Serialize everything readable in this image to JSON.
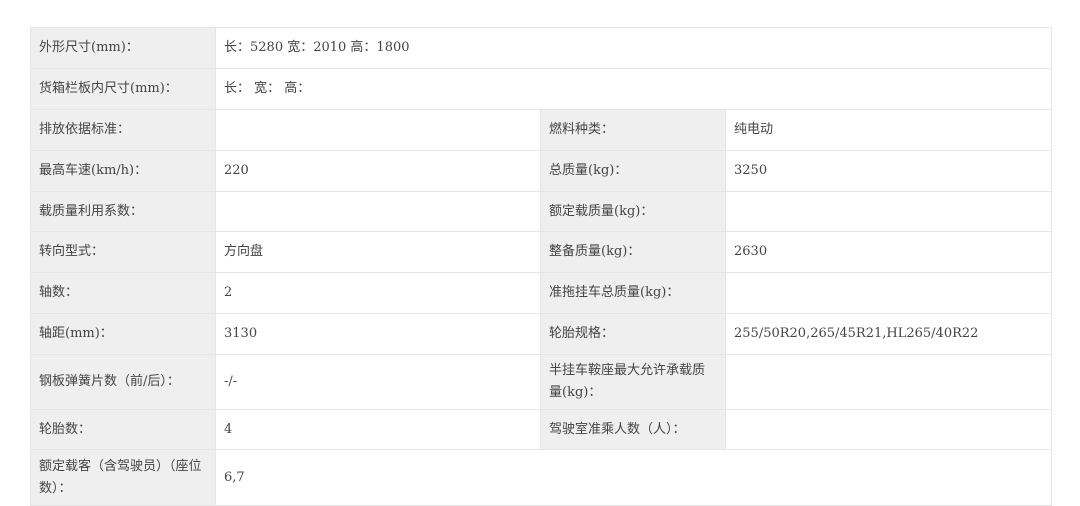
{
  "rows": [
    {
      "type": "wide",
      "label": "外形尺寸(mm)：",
      "value": "长：5280 宽：2010 高：1800"
    },
    {
      "type": "wide",
      "label": "货箱栏板内尺寸(mm)：",
      "value": "长： 宽： 高："
    },
    {
      "type": "pair",
      "label": "排放依据标准：",
      "value": "",
      "label2": "燃料种类：",
      "value2": "纯电动"
    },
    {
      "type": "pair",
      "label": "最高车速(km/h)：",
      "value": "220",
      "label2": "总质量(kg)：",
      "value2": "3250"
    },
    {
      "type": "pair",
      "label": "载质量利用系数：",
      "value": "",
      "label2": "额定载质量(kg)：",
      "value2": ""
    },
    {
      "type": "pair",
      "label": "转向型式：",
      "value": "方向盘",
      "label2": "整备质量(kg)：",
      "value2": "2630"
    },
    {
      "type": "pair",
      "label": "轴数：",
      "value": "2",
      "label2": "准拖挂车总质量(kg)：",
      "value2": ""
    },
    {
      "type": "pair",
      "label": "轴距(mm)：",
      "value": "3130",
      "label2": "轮胎规格：",
      "value2": "255/50R20,265/45R21,HL265/40R22"
    },
    {
      "type": "pair",
      "label": "钢板弹簧片数（前/后）：",
      "value": "-/-",
      "label2": "半挂车鞍座最大允许承载质量(kg)：",
      "value2": ""
    },
    {
      "type": "pair",
      "label": "轮胎数：",
      "value": "4",
      "label2": "驾驶室准乘人数（人）：",
      "value2": ""
    },
    {
      "type": "wide",
      "label": "额定载客（含驾驶员）（座位数）：",
      "value": "6,7"
    }
  ]
}
